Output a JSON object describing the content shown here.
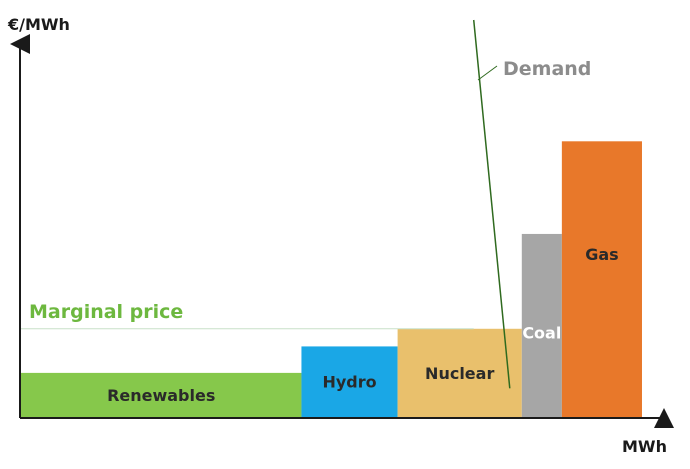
{
  "diagram": {
    "y_axis_label": "€/MWh",
    "x_axis_label": "MWh",
    "demand_label": "Demand",
    "marginal_price_label": "Marginal price"
  },
  "chart_data": {
    "type": "bar",
    "categories": [
      "Renewables",
      "Hydro",
      "Nuclear",
      "Coal",
      "Gas"
    ],
    "series": [
      {
        "values": [
          2,
          3.2,
          4,
          8.3,
          12.5
        ]
      }
    ],
    "widths": [
      7,
      2.4,
      3.1,
      1,
      2
    ],
    "colors": {
      "Renewables": "#86c84b",
      "Hydro": "#1aa7e6",
      "Nuclear": "#e9c06c",
      "Coal": "#a6a6a6",
      "Gas": "#e8782a",
      "demand_line": "#2f6a1f",
      "demand_text": "#8c8c8c",
      "marginal_text": "#6db83f",
      "marginal_line": "#c8e0c8",
      "axis": "#1a1a1a"
    },
    "marginal_price": 4,
    "demand_line": {
      "x": [
        11.3,
        12.2
      ],
      "y": [
        18,
        1.3
      ]
    },
    "xlim": [
      0,
      15.7
    ],
    "ylim": [
      0,
      18
    ],
    "grid": false,
    "legend": "none"
  }
}
